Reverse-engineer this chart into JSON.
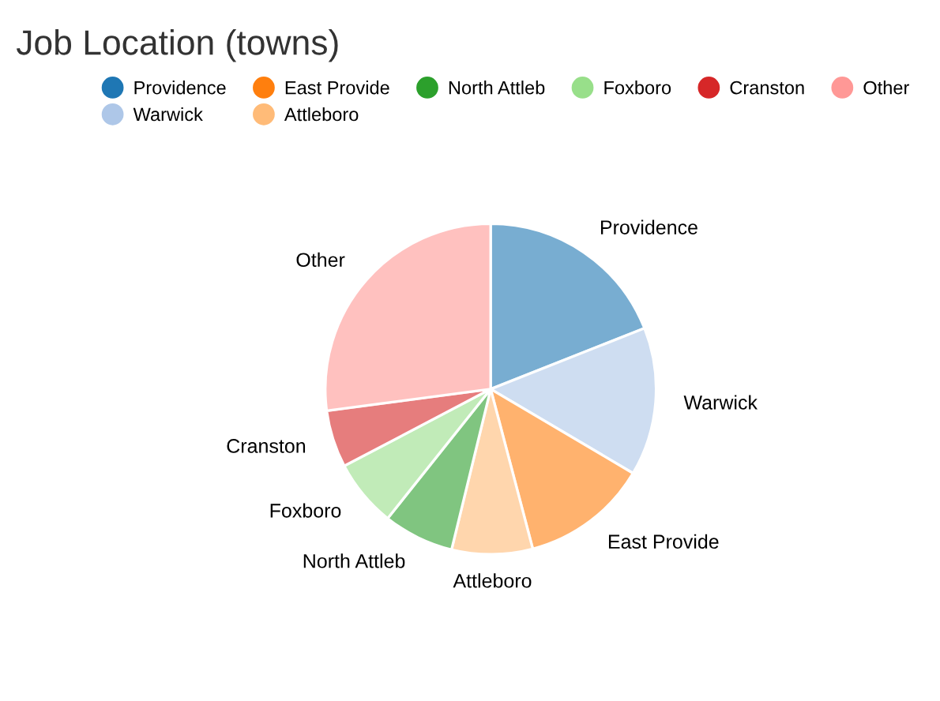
{
  "chart_data": {
    "type": "pie",
    "title": "Job Location (towns)",
    "categories": [
      "Providence",
      "Warwick",
      "East Provide",
      "Attleboro",
      "North Attleb",
      "Foxboro",
      "Cranston",
      "Other"
    ],
    "values": [
      19,
      14.5,
      12.4,
      7.9,
      6.9,
      6.6,
      5.6,
      27.1
    ],
    "colors": [
      "#1f77b4",
      "#aec7e8",
      "#ff7f0e",
      "#ffbb78",
      "#2ca02c",
      "#98df8a",
      "#d62728",
      "#ff9896"
    ],
    "legend": "top"
  }
}
